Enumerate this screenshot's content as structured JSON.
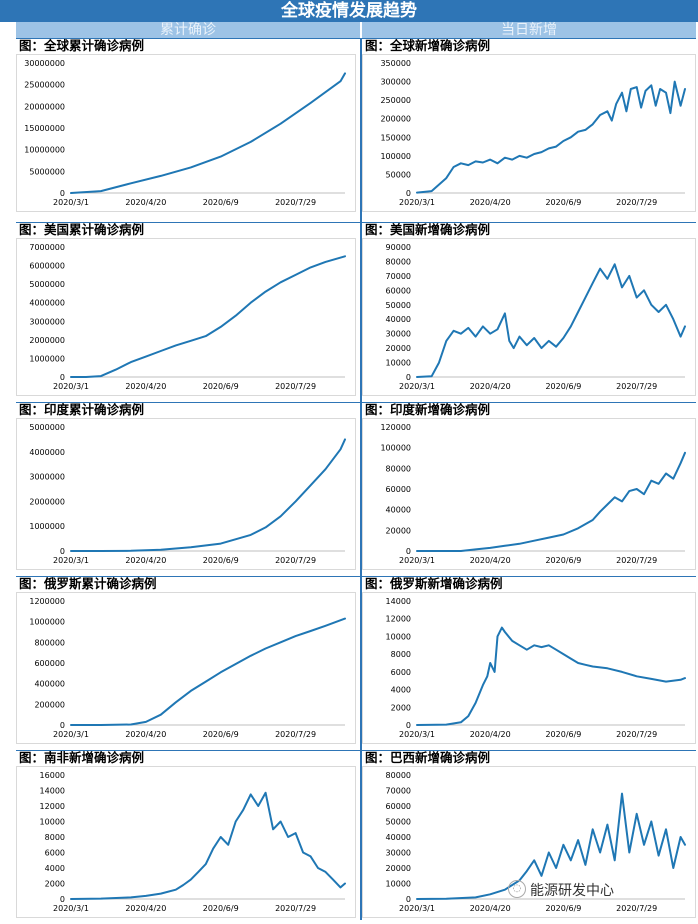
{
  "banner": {
    "title": "全球疫情发展趋势"
  },
  "headers": {
    "left": "累计确诊",
    "right": "当日新增"
  },
  "watermark": "能源研发中心",
  "colors": {
    "line": "#1f77b4",
    "accent": "#2e75b6"
  },
  "chart_data": [
    {
      "id": "global-cum",
      "type": "line",
      "title": "图：全球累计确诊病例",
      "categories": [
        "2020/3/1",
        "2020/4/20",
        "2020/6/9",
        "2020/7/29"
      ],
      "yticks": [
        "0",
        "5000000",
        "10000000",
        "15000000",
        "20000000",
        "25000000",
        "30000000"
      ],
      "ylim": [
        0,
        30000000
      ],
      "x": [
        0,
        20,
        40,
        60,
        80,
        100,
        120,
        140,
        160,
        180,
        183
      ],
      "values": [
        0,
        450000,
        2250000,
        3950000,
        5900000,
        8400000,
        11800000,
        16000000,
        20800000,
        25800000,
        27600000
      ]
    },
    {
      "id": "global-new",
      "type": "line",
      "title": "图：全球新增确诊病例",
      "categories": [
        "2020/3/1",
        "2020/4/20",
        "2020/6/9",
        "2020/7/29"
      ],
      "yticks": [
        "0",
        "50000",
        "100000",
        "150000",
        "200000",
        "250000",
        "300000",
        "350000"
      ],
      "ylim": [
        0,
        350000
      ],
      "x": [
        0,
        10,
        20,
        25,
        30,
        35,
        40,
        45,
        50,
        55,
        60,
        65,
        70,
        75,
        80,
        85,
        90,
        95,
        100,
        105,
        110,
        115,
        120,
        125,
        130,
        133,
        136,
        140,
        143,
        146,
        150,
        153,
        156,
        160,
        163,
        166,
        170,
        173,
        176,
        180,
        183
      ],
      "values": [
        1000,
        5000,
        40000,
        70000,
        80000,
        75000,
        85000,
        82000,
        90000,
        80000,
        95000,
        90000,
        100000,
        95000,
        105000,
        110000,
        120000,
        125000,
        140000,
        150000,
        165000,
        170000,
        185000,
        210000,
        220000,
        195000,
        240000,
        270000,
        220000,
        280000,
        285000,
        230000,
        275000,
        290000,
        235000,
        280000,
        270000,
        215000,
        300000,
        235000,
        280000
      ]
    },
    {
      "id": "us-cum",
      "type": "line",
      "title": "图：美国累计确诊病例",
      "categories": [
        "2020/3/1",
        "2020/4/20",
        "2020/6/9",
        "2020/7/29"
      ],
      "yticks": [
        "0",
        "1000000",
        "2000000",
        "3000000",
        "4000000",
        "5000000",
        "6000000",
        "7000000"
      ],
      "ylim": [
        0,
        7000000
      ],
      "x": [
        0,
        10,
        20,
        30,
        40,
        50,
        60,
        70,
        80,
        90,
        100,
        110,
        120,
        130,
        140,
        150,
        160,
        170,
        183
      ],
      "values": [
        0,
        0,
        50000,
        400000,
        800000,
        1100000,
        1400000,
        1700000,
        1950000,
        2200000,
        2700000,
        3300000,
        4000000,
        4600000,
        5100000,
        5500000,
        5900000,
        6200000,
        6500000
      ]
    },
    {
      "id": "us-new",
      "type": "line",
      "title": "图：美国新增确诊病例",
      "categories": [
        "2020/3/1",
        "2020/4/20",
        "2020/6/9",
        "2020/7/29"
      ],
      "yticks": [
        "0",
        "10000",
        "20000",
        "30000",
        "40000",
        "50000",
        "60000",
        "70000",
        "80000",
        "90000"
      ],
      "ylim": [
        0,
        90000
      ],
      "x": [
        0,
        10,
        15,
        20,
        25,
        30,
        35,
        40,
        45,
        50,
        55,
        60,
        63,
        66,
        70,
        75,
        80,
        85,
        90,
        95,
        100,
        105,
        110,
        115,
        120,
        125,
        130,
        135,
        140,
        145,
        150,
        155,
        160,
        165,
        170,
        175,
        180,
        183
      ],
      "values": [
        0,
        500,
        10000,
        25000,
        32000,
        30000,
        34000,
        28000,
        35000,
        30000,
        33000,
        44000,
        25000,
        20000,
        28000,
        22000,
        27000,
        20000,
        25000,
        21000,
        27000,
        35000,
        45000,
        55000,
        65000,
        75000,
        68000,
        78000,
        62000,
        70000,
        55000,
        60000,
        50000,
        45000,
        50000,
        40000,
        28000,
        35000
      ]
    },
    {
      "id": "india-cum",
      "type": "line",
      "title": "图：印度累计确诊病例",
      "categories": [
        "2020/3/1",
        "2020/4/20",
        "2020/6/9",
        "2020/7/29"
      ],
      "yticks": [
        "0",
        "1000000",
        "2000000",
        "3000000",
        "4000000",
        "5000000"
      ],
      "ylim": [
        0,
        5000000
      ],
      "x": [
        0,
        20,
        40,
        60,
        80,
        100,
        120,
        130,
        140,
        150,
        160,
        170,
        180,
        183
      ],
      "values": [
        0,
        0,
        10000,
        50000,
        150000,
        300000,
        650000,
        950000,
        1400000,
        2000000,
        2650000,
        3300000,
        4100000,
        4500000
      ]
    },
    {
      "id": "india-new",
      "type": "line",
      "title": "图：印度新增确诊病例",
      "categories": [
        "2020/3/1",
        "2020/4/20",
        "2020/6/9",
        "2020/7/29"
      ],
      "yticks": [
        "0",
        "20000",
        "40000",
        "60000",
        "80000",
        "100000",
        "120000"
      ],
      "ylim": [
        0,
        120000
      ],
      "x": [
        0,
        30,
        40,
        50,
        60,
        70,
        80,
        90,
        100,
        110,
        120,
        125,
        130,
        135,
        140,
        145,
        150,
        155,
        160,
        165,
        170,
        175,
        180,
        183
      ],
      "values": [
        0,
        0,
        1500,
        3000,
        5000,
        7000,
        10000,
        13000,
        16000,
        22000,
        30000,
        38000,
        45000,
        52000,
        48000,
        58000,
        60000,
        55000,
        68000,
        65000,
        75000,
        70000,
        85000,
        95000
      ]
    },
    {
      "id": "russia-cum",
      "type": "line",
      "title": "图：俄罗斯累计确诊病例",
      "categories": [
        "2020/3/1",
        "2020/4/20",
        "2020/6/9",
        "2020/7/29"
      ],
      "yticks": [
        "0",
        "200000",
        "400000",
        "600000",
        "800000",
        "1000000",
        "1200000"
      ],
      "ylim": [
        0,
        1200000
      ],
      "x": [
        0,
        20,
        40,
        50,
        60,
        70,
        80,
        90,
        100,
        110,
        120,
        130,
        140,
        150,
        160,
        170,
        183
      ],
      "values": [
        0,
        0,
        5000,
        30000,
        100000,
        220000,
        330000,
        420000,
        510000,
        590000,
        670000,
        740000,
        800000,
        860000,
        910000,
        960000,
        1030000
      ]
    },
    {
      "id": "russia-new",
      "type": "line",
      "title": "图：俄罗斯新增确诊病例",
      "categories": [
        "2020/3/1",
        "2020/4/20",
        "2020/6/9",
        "2020/7/29"
      ],
      "yticks": [
        "0",
        "2000",
        "4000",
        "6000",
        "8000",
        "10000",
        "12000",
        "14000"
      ],
      "ylim": [
        0,
        14000
      ],
      "x": [
        0,
        20,
        30,
        35,
        40,
        45,
        48,
        50,
        53,
        55,
        58,
        60,
        65,
        70,
        75,
        80,
        85,
        90,
        95,
        100,
        105,
        110,
        115,
        120,
        130,
        140,
        150,
        160,
        170,
        180,
        183
      ],
      "values": [
        0,
        50,
        300,
        1000,
        2500,
        4500,
        5500,
        7000,
        6000,
        10000,
        11000,
        10500,
        9500,
        9000,
        8500,
        9000,
        8800,
        9000,
        8500,
        8000,
        7500,
        7000,
        6800,
        6600,
        6400,
        6000,
        5500,
        5200,
        4900,
        5100,
        5300
      ]
    },
    {
      "id": "sa-new",
      "type": "line",
      "title": "图：南非新增确诊病例",
      "categories": [
        "2020/3/1",
        "2020/4/20",
        "2020/6/9",
        "2020/7/29"
      ],
      "yticks": [
        "0",
        "2000",
        "4000",
        "6000",
        "8000",
        "10000",
        "12000",
        "14000",
        "16000"
      ],
      "ylim": [
        0,
        16000
      ],
      "x": [
        0,
        20,
        40,
        50,
        60,
        70,
        75,
        80,
        85,
        90,
        95,
        100,
        105,
        110,
        115,
        120,
        125,
        130,
        135,
        140,
        145,
        150,
        155,
        160,
        165,
        170,
        175,
        180,
        183
      ],
      "values": [
        0,
        50,
        200,
        400,
        700,
        1200,
        1800,
        2500,
        3500,
        4500,
        6500,
        8000,
        7000,
        10000,
        11500,
        13500,
        12000,
        13700,
        9000,
        10000,
        8000,
        8500,
        6000,
        5500,
        4000,
        3500,
        2500,
        1500,
        2000
      ]
    },
    {
      "id": "brazil-new",
      "type": "line",
      "title": "图：巴西新增确诊病例",
      "categories": [
        "2020/3/1",
        "2020/4/20",
        "2020/6/9",
        "2020/7/29"
      ],
      "yticks": [
        "0",
        "10000",
        "20000",
        "30000",
        "40000",
        "50000",
        "60000",
        "70000",
        "80000"
      ],
      "ylim": [
        0,
        80000
      ],
      "x": [
        0,
        20,
        40,
        50,
        60,
        70,
        75,
        80,
        85,
        90,
        95,
        100,
        105,
        110,
        115,
        120,
        125,
        130,
        135,
        140,
        145,
        150,
        155,
        160,
        165,
        170,
        175,
        180,
        183
      ],
      "values": [
        0,
        100,
        1000,
        3000,
        6000,
        12000,
        18000,
        25000,
        15000,
        30000,
        20000,
        35000,
        25000,
        38000,
        22000,
        45000,
        30000,
        48000,
        25000,
        68000,
        30000,
        55000,
        35000,
        50000,
        28000,
        45000,
        20000,
        40000,
        35000
      ]
    }
  ]
}
